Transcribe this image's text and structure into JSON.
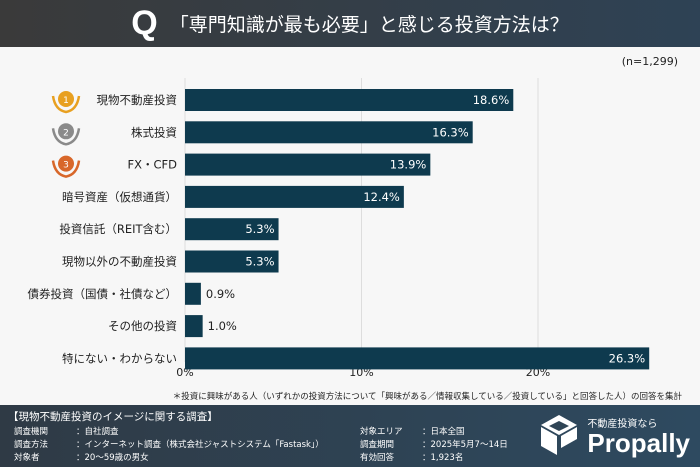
{
  "header": {
    "q": "Q",
    "title": "「専門知識が最も必要」と感じる投資方法は？"
  },
  "sample": "(n=1,299)",
  "chart_data": {
    "type": "bar",
    "orientation": "horizontal",
    "title": "「専門知識が最も必要」と感じる投資方法は？",
    "categories": [
      "現物不動産投資",
      "株式投資",
      "FX・CFD",
      "暗号資産（仮想通貨）",
      "投資信託（REIT含む）",
      "現物以外の不動産投資",
      "債券投資（国債・社債など）",
      "その他の投資",
      "特にない・わからない"
    ],
    "values": [
      18.6,
      16.3,
      13.9,
      12.4,
      5.3,
      5.3,
      0.9,
      1.0,
      26.3
    ],
    "value_labels": [
      "18.6%",
      "16.3%",
      "13.9%",
      "12.4%",
      "5.3%",
      "5.3%",
      "0.9%",
      "1.0%",
      "26.3%"
    ],
    "ranks": [
      "1",
      "2",
      "3"
    ],
    "xticks": [
      "0%",
      "10%",
      "20%"
    ],
    "xlim": [
      0,
      30
    ],
    "grid": true,
    "colors": {
      "bar": "#0e3a4e",
      "gold": "#e8a020",
      "silver": "#8a8a8a",
      "bronze": "#d8672a"
    }
  },
  "note": "＊投資に興味がある人（いずれかの投資方法について「興味がある／情報収集している／投資している」と回答した人）の回答を集計",
  "footer": {
    "title": "【現物不動産投資のイメージに関する調査】",
    "rows": [
      {
        "k": "調査機関",
        "v": "：自社調査"
      },
      {
        "k": "調査方法",
        "v": "：インターネット調査（株式会社ジャストシステム「Fastask」）"
      },
      {
        "k": "対象者",
        "v": "：20〜59歳の男女"
      },
      {
        "k": "対象エリア",
        "v": "：日本全国"
      },
      {
        "k": "調査期間",
        "v": "：2025年5月7〜14日"
      },
      {
        "k": "有効回答",
        "v": "：1,923名"
      }
    ],
    "brand_sub": "不動産投資なら",
    "brand": "Propally"
  }
}
